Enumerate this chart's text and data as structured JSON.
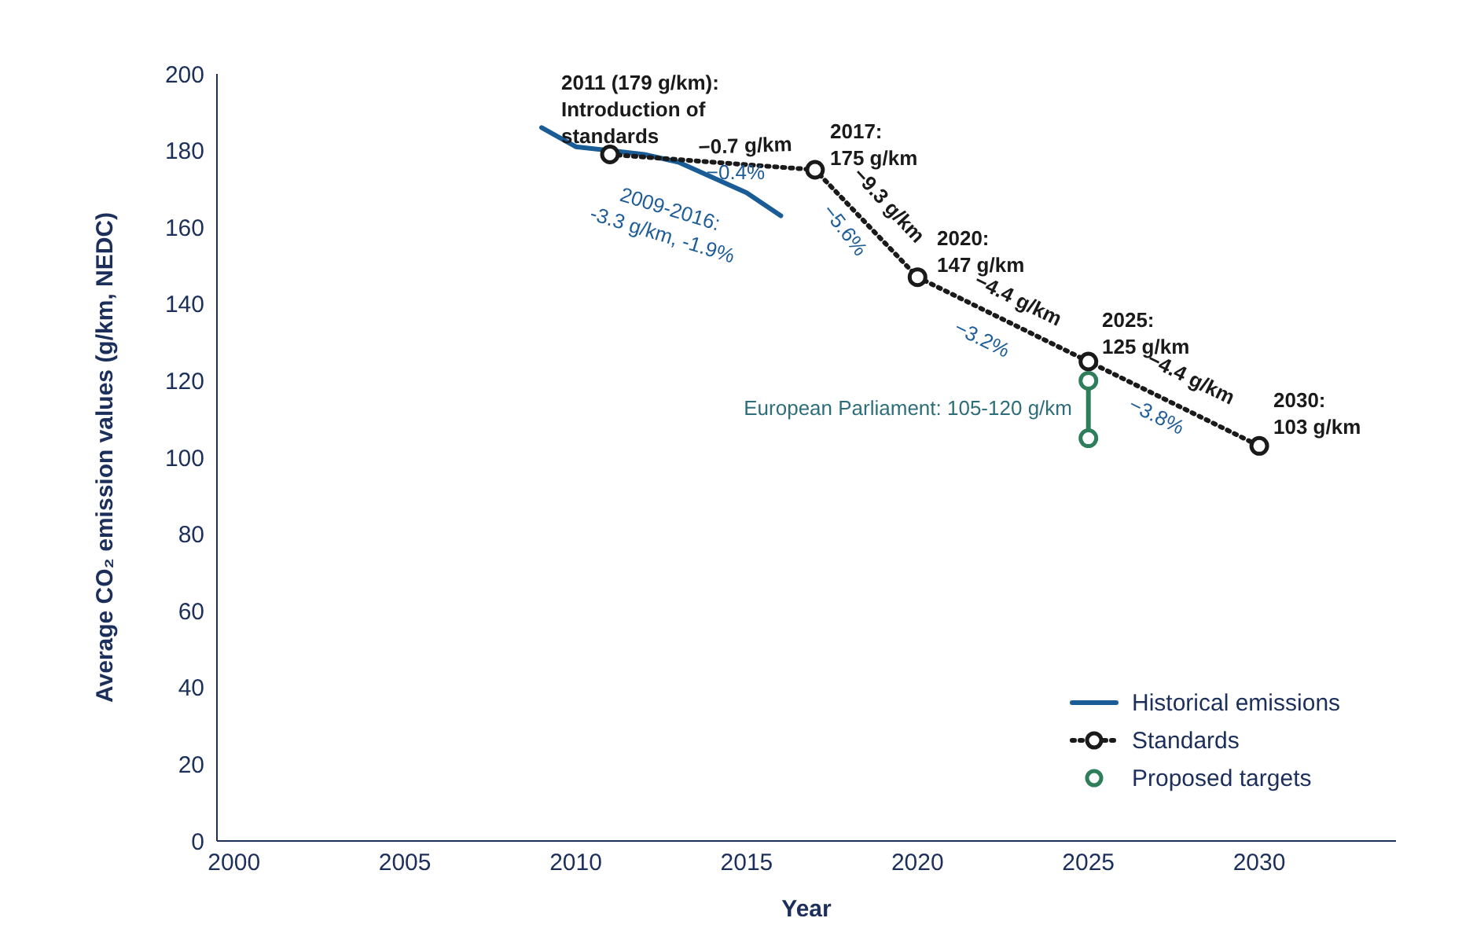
{
  "chart_data": {
    "type": "line",
    "xlabel": "Year",
    "ylabel": "Average CO₂ emission values (g/km, NEDC)",
    "xlim": [
      1999.5,
      2034
    ],
    "xticks": [
      2000,
      2005,
      2010,
      2015,
      2020,
      2025,
      2030
    ],
    "ylim": [
      0,
      200
    ],
    "yticks": [
      0,
      20,
      40,
      60,
      80,
      100,
      120,
      140,
      160,
      180,
      200
    ],
    "grid": false,
    "legend": "bottom right",
    "series": [
      {
        "name": "Historical emissions",
        "color": "#1a5c96",
        "marker": "none",
        "line_style": "solid",
        "x": [
          2009,
          2010,
          2011,
          2012,
          2013,
          2014,
          2015,
          2016
        ],
        "values": [
          186,
          181,
          180,
          179,
          177,
          173,
          169,
          163
        ]
      },
      {
        "name": "Standards",
        "color": "#1a1a1a",
        "marker": "circle",
        "line_style": "dotted",
        "x": [
          2011,
          2017,
          2020,
          2025,
          2030
        ],
        "values": [
          179,
          175,
          147,
          125,
          103
        ]
      },
      {
        "name": "Proposed targets",
        "color": "#2e7d5b",
        "marker": "circle",
        "line_style": "solid",
        "x": [
          2025,
          2025
        ],
        "values": [
          120,
          105
        ]
      }
    ],
    "annotations": [
      "2011 (179 g/km):\nIntroduction of\nstandards",
      "−0.7 g/km",
      "−0.4%",
      "2009-2016:\n-3.3 g/km, -1.9%",
      "2017:\n175 g/km",
      "−9.3 g/km",
      "−5.6%",
      "2020:\n147 g/km",
      "−4.4 g/km",
      "−3.2%",
      "2025:\n125 g/km",
      "−4.4 g/km",
      "−3.8%",
      "2030:\n103 g/km",
      "European Parliament: 105-120 g/km"
    ]
  }
}
